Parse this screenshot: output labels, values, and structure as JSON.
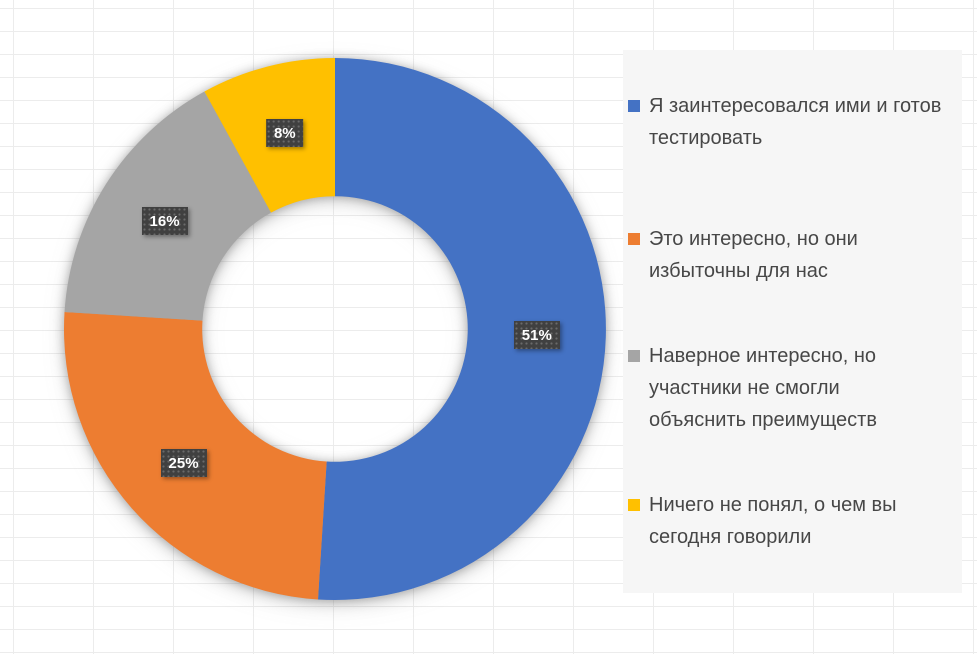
{
  "chart_data": {
    "type": "pie",
    "subtype": "donut",
    "title": "",
    "legend_position": "right",
    "hole_ratio": 0.49,
    "start_angle_deg": 0,
    "direction": "clockwise",
    "slices": [
      {
        "label": "Я заинтересовался ими и готов тестировать",
        "label_wrapped": "Я заинтересовался ими и готов\nтестировать",
        "value": 51,
        "percent_label": "51%",
        "color": "#4472C4"
      },
      {
        "label": "Это интересно, но они избыточны для нас",
        "label_wrapped": "Это интересно, но они\nизбыточны для нас",
        "value": 25,
        "percent_label": "25%",
        "color": "#ED7D31"
      },
      {
        "label": "Наверное интересно, но участники не смогли объяснить преимуществ",
        "label_wrapped": "Наверное интересно, но\nучастники не смогли\nобъяснить преимуществ",
        "value": 16,
        "percent_label": "16%",
        "color": "#A5A5A5"
      },
      {
        "label": "Ничего не понял, о чем вы сегодня говорили",
        "label_wrapped": "Ничего не понял, о чем вы\nсегодня говорили",
        "value": 8,
        "percent_label": "8%",
        "color": "#FFC000"
      }
    ],
    "data_label_style": {
      "background": "#404040",
      "text_color": "#FFFFFF"
    },
    "legend_background": "#F6F6F6"
  }
}
